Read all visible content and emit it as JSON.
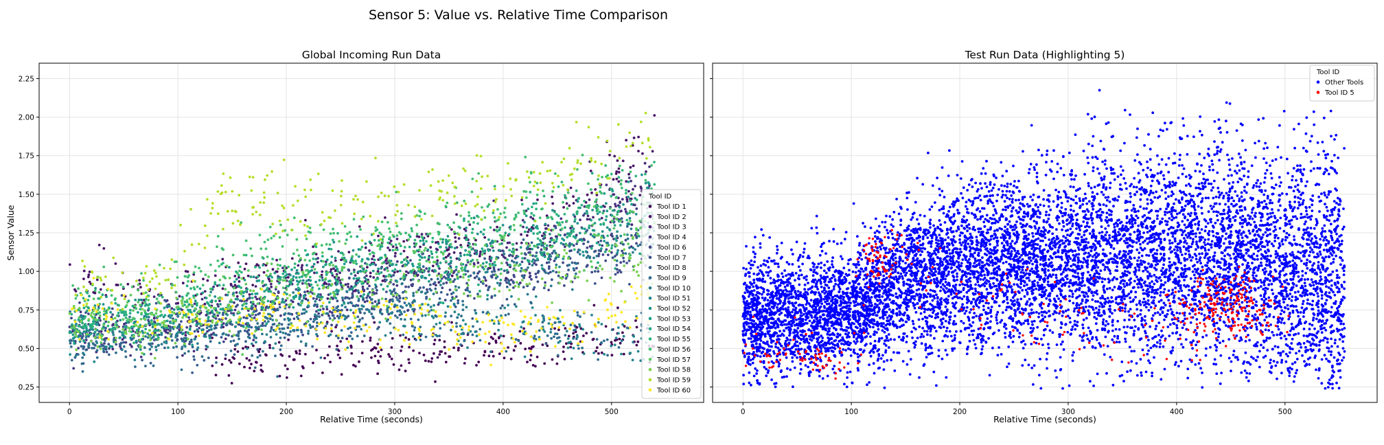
{
  "figure": {
    "suptitle": "Sensor 5: Value vs. Relative Time Comparison"
  },
  "chart_data": [
    {
      "type": "scatter",
      "title": "Global Incoming Run Data",
      "xlabel": "Relative Time (seconds)",
      "ylabel": "Sensor Value",
      "xlim": [
        -28,
        585
      ],
      "ylim": [
        0.15,
        2.35
      ],
      "xticks": [
        0,
        100,
        200,
        300,
        400,
        500
      ],
      "yticks": [
        0.25,
        0.5,
        0.75,
        1.0,
        1.25,
        1.5,
        1.75,
        2.0,
        2.25
      ],
      "xtick_labels": [
        "0",
        "100",
        "200",
        "300",
        "400",
        "500"
      ],
      "ytick_labels": [
        "0.25",
        "0.50",
        "0.75",
        "1.00",
        "1.25",
        "1.50",
        "1.75",
        "2.00",
        "2.25"
      ],
      "grid": true,
      "colormap": "viridis",
      "legend": {
        "title": "Tool ID",
        "placement": "center-right",
        "entries": [
          "Tool ID 1",
          "Tool ID 2",
          "Tool ID 3",
          "Tool ID 4",
          "Tool ID 6",
          "Tool ID 7",
          "Tool ID 8",
          "Tool ID 9",
          "Tool ID 10",
          "Tool ID 51",
          "Tool ID 52",
          "Tool ID 53",
          "Tool ID 54",
          "Tool ID 55",
          "Tool ID 56",
          "Tool ID 57",
          "Tool ID 58",
          "Tool ID 59",
          "Tool ID 60"
        ],
        "colors": [
          "#440154",
          "#471365",
          "#482475",
          "#463480",
          "#414487",
          "#3b528b",
          "#355f8d",
          "#2f6c8e",
          "#2a788e",
          "#25848e",
          "#21918c",
          "#1e9c89",
          "#22a884",
          "#2fb47c",
          "#44bf70",
          "#5ec962",
          "#7ad151",
          "#b5de2b",
          "#fde725"
        ]
      },
      "series": [
        {
          "name": "Tool ID 1",
          "x": [
            130,
            200,
            260,
            320,
            380,
            440,
            500,
            540
          ],
          "y": [
            0.42,
            0.45,
            0.48,
            0.47,
            0.5,
            0.52,
            0.55,
            0.56
          ]
        },
        {
          "name": "Tool ID 2",
          "x": [
            0,
            50,
            100,
            150,
            200,
            260,
            320,
            380,
            440,
            500,
            540
          ],
          "y": [
            0.95,
            0.9,
            0.85,
            0.9,
            1.0,
            1.05,
            1.1,
            1.15,
            1.25,
            1.6,
            1.85
          ]
        },
        {
          "name": "Tool ID 3",
          "x": [
            0,
            60,
            120,
            180,
            240,
            300,
            360,
            420,
            480,
            540
          ],
          "y": [
            0.62,
            0.62,
            0.7,
            0.85,
            0.95,
            1.05,
            1.12,
            1.2,
            1.4,
            1.5
          ]
        },
        {
          "name": "Tool ID 4",
          "x": [
            0,
            60,
            120,
            180,
            240,
            300,
            360,
            420,
            480,
            540
          ],
          "y": [
            0.58,
            0.6,
            0.65,
            0.75,
            0.85,
            0.95,
            1.05,
            1.15,
            1.3,
            1.45
          ]
        },
        {
          "name": "Tool ID 6",
          "x": [
            0,
            80,
            160,
            240,
            320,
            400,
            480,
            540
          ],
          "y": [
            0.6,
            0.62,
            0.7,
            0.78,
            0.9,
            1.0,
            1.1,
            1.2
          ]
        },
        {
          "name": "Tool ID 7",
          "x": [
            0,
            80,
            160,
            240,
            320,
            400,
            480,
            540
          ],
          "y": [
            0.62,
            0.65,
            0.72,
            0.8,
            0.88,
            0.98,
            1.05,
            1.1
          ]
        },
        {
          "name": "Tool ID 8",
          "x": [
            0,
            80,
            160,
            240,
            320,
            400,
            480,
            540
          ],
          "y": [
            0.55,
            0.55,
            0.6,
            0.7,
            0.85,
            1.0,
            1.2,
            1.35
          ]
        },
        {
          "name": "Tool ID 9",
          "x": [
            0,
            80,
            160,
            240,
            320,
            400,
            480,
            540
          ],
          "y": [
            0.5,
            0.52,
            0.58,
            0.62,
            0.65,
            0.65,
            0.6,
            0.58
          ]
        },
        {
          "name": "Tool ID 10",
          "x": [
            0,
            80,
            160,
            240,
            320,
            400,
            480,
            540
          ],
          "y": [
            0.6,
            0.62,
            0.68,
            0.75,
            0.85,
            1.0,
            1.15,
            1.25
          ]
        },
        {
          "name": "Tool ID 51",
          "x": [
            0,
            80,
            160,
            240,
            320,
            400,
            480,
            540
          ],
          "y": [
            0.55,
            0.6,
            0.65,
            0.7,
            0.72,
            0.7,
            0.6,
            0.55
          ]
        },
        {
          "name": "Tool ID 52",
          "x": [
            0,
            80,
            160,
            240,
            320,
            400,
            480,
            540
          ],
          "y": [
            0.65,
            0.7,
            0.85,
            1.0,
            1.1,
            1.2,
            1.3,
            1.4
          ]
        },
        {
          "name": "Tool ID 53",
          "x": [
            0,
            80,
            160,
            240,
            320,
            400,
            480,
            540
          ],
          "y": [
            0.6,
            0.65,
            0.8,
            0.95,
            1.05,
            1.15,
            1.3,
            1.45
          ]
        },
        {
          "name": "Tool ID 54",
          "x": [
            0,
            80,
            160,
            240,
            320,
            400,
            480,
            540
          ],
          "y": [
            0.65,
            0.7,
            0.85,
            0.95,
            1.05,
            1.1,
            1.2,
            1.3
          ]
        },
        {
          "name": "Tool ID 55",
          "x": [
            0,
            80,
            160,
            240,
            320,
            400,
            480,
            540
          ],
          "y": [
            0.7,
            0.72,
            0.95,
            1.05,
            1.15,
            1.3,
            1.4,
            1.5
          ]
        },
        {
          "name": "Tool ID 56",
          "x": [
            0,
            80,
            160,
            240,
            320,
            400,
            480,
            540
          ],
          "y": [
            0.85,
            0.88,
            1.1,
            1.2,
            1.3,
            1.4,
            1.5,
            1.55
          ]
        },
        {
          "name": "Tool ID 57",
          "x": [
            0,
            80,
            160,
            240,
            320,
            400,
            480,
            540
          ],
          "y": [
            0.7,
            0.72,
            0.9,
            1.0,
            1.1,
            1.15,
            1.25,
            1.3
          ]
        },
        {
          "name": "Tool ID 58",
          "x": [
            0,
            80,
            160,
            240,
            320,
            400,
            480,
            540
          ],
          "y": [
            0.6,
            0.62,
            0.78,
            0.85,
            0.9,
            0.95,
            1.0,
            1.05
          ]
        },
        {
          "name": "Tool ID 59",
          "x": [
            0,
            80,
            140,
            200,
            260,
            320,
            380,
            440,
            500,
            540
          ],
          "y": [
            0.9,
            0.9,
            1.45,
            1.45,
            1.4,
            1.5,
            1.55,
            1.55,
            1.75,
            1.9
          ]
        },
        {
          "name": "Tool ID 60",
          "x": [
            0,
            60,
            120,
            180,
            240,
            300,
            360,
            420,
            480,
            540
          ],
          "y": [
            0.75,
            0.72,
            0.72,
            0.75,
            0.7,
            0.68,
            0.62,
            0.6,
            0.7,
            0.8
          ]
        }
      ]
    },
    {
      "type": "scatter",
      "title": "Test Run Data (Highlighting 5)",
      "xlabel": "Relative Time (seconds)",
      "ylabel": "",
      "xlim": [
        -28,
        585
      ],
      "ylim": [
        0.15,
        2.35
      ],
      "xticks": [
        0,
        100,
        200,
        300,
        400,
        500
      ],
      "yticks": [
        0.25,
        0.5,
        0.75,
        1.0,
        1.25,
        1.5,
        1.75,
        2.0,
        2.25
      ],
      "xtick_labels": [
        "0",
        "100",
        "200",
        "300",
        "400",
        "500"
      ],
      "ytick_labels": [],
      "grid": true,
      "legend": {
        "title": "Tool ID",
        "placement": "top-right",
        "entries": [
          "Other Tools",
          "Tool ID 5"
        ],
        "colors": [
          "#0000ff",
          "#ff0000"
        ]
      },
      "series": [
        {
          "name": "Other Tools",
          "x": [
            0,
            50,
            100,
            150,
            200,
            250,
            300,
            350,
            400,
            450,
            500,
            550
          ],
          "y": [
            0.7,
            0.72,
            0.75,
            0.95,
            1.0,
            1.05,
            1.05,
            1.1,
            1.1,
            1.1,
            1.0,
            0.95
          ]
        },
        {
          "name": "Tool ID 5",
          "x": [
            0,
            100,
            120,
            140,
            200,
            300,
            400,
            450,
            480,
            500,
            520
          ],
          "y": [
            0.45,
            0.42,
            1.05,
            1.1,
            0.8,
            0.7,
            0.65,
            0.8,
            0.78,
            0.75,
            0.7
          ]
        }
      ]
    }
  ]
}
